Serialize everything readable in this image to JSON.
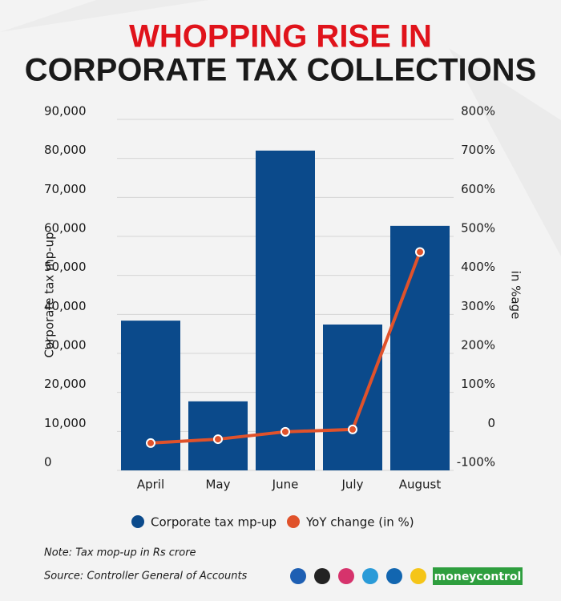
{
  "chart_data": {
    "type": "bar",
    "title_highlight": "WHOPPING RISE IN",
    "title": "CORPORATE TAX COLLECTIONS",
    "y_label": "Corporate tax mp-up",
    "y2_label": "in %age",
    "categories": [
      "April",
      "May",
      "June",
      "July",
      "August"
    ],
    "series": [
      {
        "name": "Corporate tax mp-up",
        "type": "bar",
        "color": "#0b4a8b",
        "values": [
          38400,
          17700,
          82000,
          37400,
          62700
        ]
      },
      {
        "name": "YoY change (in %)",
        "type": "line",
        "axis": "y2",
        "color": "#e0522b",
        "values": [
          -30,
          -20,
          -1,
          5,
          460
        ]
      }
    ],
    "ylim": [
      0,
      90000
    ],
    "yticks": [
      0,
      {
        "value": 10000,
        "label": "10,000"
      },
      {
        "value": 20000,
        "label": "20,000"
      },
      {
        "value": 30000,
        "label": "30,000"
      },
      {
        "value": 40000,
        "label": "40,000"
      },
      {
        "value": 50000,
        "label": "50,000"
      },
      {
        "value": 60000,
        "label": "60,000"
      },
      {
        "value": 70000,
        "label": "70,000"
      },
      {
        "value": 80000,
        "label": "80,000"
      },
      {
        "value": 90000,
        "label": "90,000"
      }
    ],
    "y2lim": [
      -100,
      800
    ],
    "y2ticks": [
      {
        "value": -100,
        "label": "-100%"
      },
      0,
      {
        "value": 100,
        "label": "100%"
      },
      {
        "value": 200,
        "label": "200%"
      },
      {
        "value": 300,
        "label": "300%"
      },
      {
        "value": 400,
        "label": "400%"
      },
      {
        "value": 500,
        "label": "500%"
      },
      {
        "value": 600,
        "label": "600%"
      },
      {
        "value": 700,
        "label": "700%"
      },
      {
        "value": 800,
        "label": "800%"
      }
    ],
    "grid": true,
    "legend": "bottom",
    "note": "Note: Tax mop-up in Rs crore",
    "source": "Source: Controller General of Accounts",
    "brand": "moneycontrol"
  }
}
